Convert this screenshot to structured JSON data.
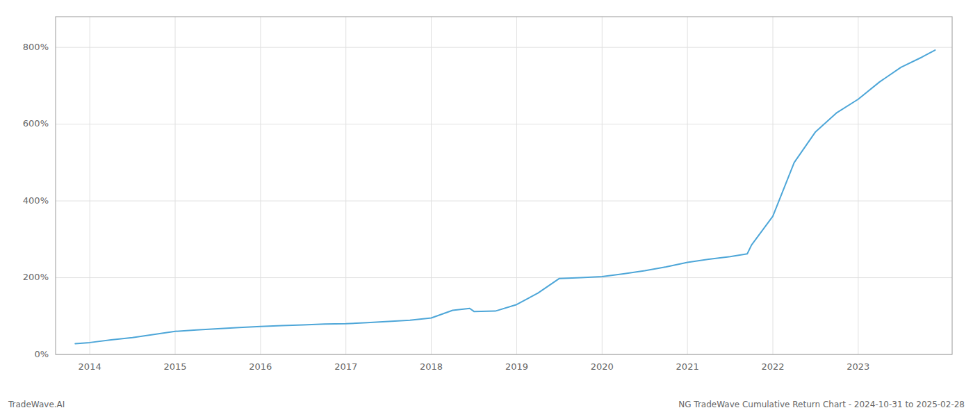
{
  "chart_data": {
    "type": "line",
    "title": "NG TradeWave Cumulative Return Chart - 2024-10-31 to 2025-02-28",
    "annotations": [
      "TradeWave.AI"
    ],
    "color": "#4da6d8",
    "x": [
      2013.83,
      2014.0,
      2014.25,
      2014.5,
      2014.75,
      2015.0,
      2015.25,
      2015.5,
      2015.75,
      2016.0,
      2016.25,
      2016.5,
      2016.75,
      2017.0,
      2017.25,
      2017.5,
      2017.75,
      2018.0,
      2018.25,
      2018.45,
      2018.5,
      2018.75,
      2019.0,
      2019.25,
      2019.5,
      2019.75,
      2020.0,
      2020.25,
      2020.5,
      2020.75,
      2021.0,
      2021.25,
      2021.5,
      2021.7,
      2021.75,
      2022.0,
      2022.25,
      2022.5,
      2022.75,
      2023.0,
      2023.25,
      2023.5,
      2023.75,
      2023.9
    ],
    "values": [
      28,
      31,
      38,
      44,
      52,
      60,
      64,
      67,
      70,
      73,
      75,
      77,
      79,
      80,
      83,
      86,
      89,
      95,
      115,
      120,
      112,
      113,
      130,
      160,
      198,
      200,
      203,
      210,
      218,
      228,
      240,
      248,
      255,
      262,
      285,
      360,
      500,
      580,
      630,
      665,
      710,
      748,
      775,
      793
    ],
    "xlim": [
      2013.6,
      2024.1
    ],
    "xticks": [
      2014,
      2015,
      2016,
      2017,
      2018,
      2019,
      2020,
      2021,
      2022,
      2023
    ],
    "ylim": [
      0,
      880
    ],
    "yticks": [
      {
        "value": 0,
        "label": "0%"
      },
      {
        "value": 200,
        "label": "200%"
      },
      {
        "value": 400,
        "label": "400%"
      },
      {
        "value": 600,
        "label": "600%"
      },
      {
        "value": 800,
        "label": "800%"
      }
    ],
    "grid": true
  }
}
